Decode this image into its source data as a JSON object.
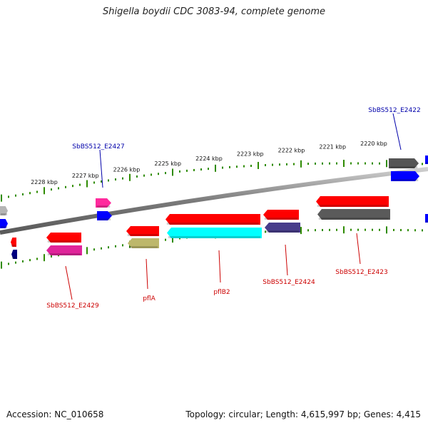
{
  "header": {
    "title": "Shigella boydii CDC 3083-94, complete genome"
  },
  "footer": {
    "accession": "Accession: NC_010658",
    "summary": "Topology: circular; Length: 4,615,997 bp; Genes: 4,415"
  },
  "colors": {
    "backbone": "#8a8a8a",
    "tick": "#2e8b00",
    "forward_label": "#0000aa",
    "reverse_label": "#cc0000",
    "red": "#ff0000",
    "pink": "#ff2a9d",
    "blue": "#0000ff",
    "grey": "#555555",
    "lightgrey": "#b5b5b5",
    "navy": "#000080",
    "magenta": "#e0249a",
    "olive": "#bdb76b",
    "cyan": "#00ffff",
    "slate": "#483d8b",
    "darkgrey": "#5a5a5a"
  },
  "scale": {
    "unit": "kbp",
    "major_ticks": [
      {
        "kbp": 2228,
        "label": "2228 kbp"
      },
      {
        "kbp": 2227,
        "label": "2227 kbp"
      },
      {
        "kbp": 2226,
        "label": "2226 kbp"
      },
      {
        "kbp": 2225,
        "label": "2225 kbp"
      },
      {
        "kbp": 2224,
        "label": "2224 kbp"
      },
      {
        "kbp": 2223,
        "label": "2223 kbp"
      },
      {
        "kbp": 2222,
        "label": "2222 kbp"
      },
      {
        "kbp": 2221,
        "label": "2221 kbp"
      },
      {
        "kbp": 2220,
        "label": "2220 kbp"
      }
    ]
  },
  "features": {
    "outer_forward": [
      {
        "color": "lightgrey",
        "name": ""
      },
      {
        "color": "blue",
        "name": ""
      },
      {
        "color": "pink",
        "name": ""
      },
      {
        "color": "blue",
        "name": ""
      },
      {
        "color": "grey",
        "name": ""
      },
      {
        "color": "blue",
        "name": ""
      }
    ],
    "inner_reverse": [
      {
        "color": "red",
        "name": ""
      },
      {
        "color": "navy",
        "name": ""
      },
      {
        "color": "red",
        "name": ""
      },
      {
        "color": "magenta",
        "name": ""
      },
      {
        "color": "red",
        "name": ""
      },
      {
        "color": "olive",
        "name": ""
      },
      {
        "color": "red",
        "name": ""
      },
      {
        "color": "cyan",
        "name": ""
      },
      {
        "color": "red",
        "name": ""
      },
      {
        "color": "slate",
        "name": ""
      },
      {
        "color": "red",
        "name": ""
      },
      {
        "color": "darkgrey",
        "name": ""
      }
    ]
  },
  "gene_labels": {
    "forward": [
      "SbBS512_E2427",
      "SbBS512_E2422"
    ],
    "reverse": [
      "SbBS512_E2429",
      "pflA",
      "pflB2",
      "SbBS512_E2424",
      "SbBS512_E2423"
    ]
  }
}
